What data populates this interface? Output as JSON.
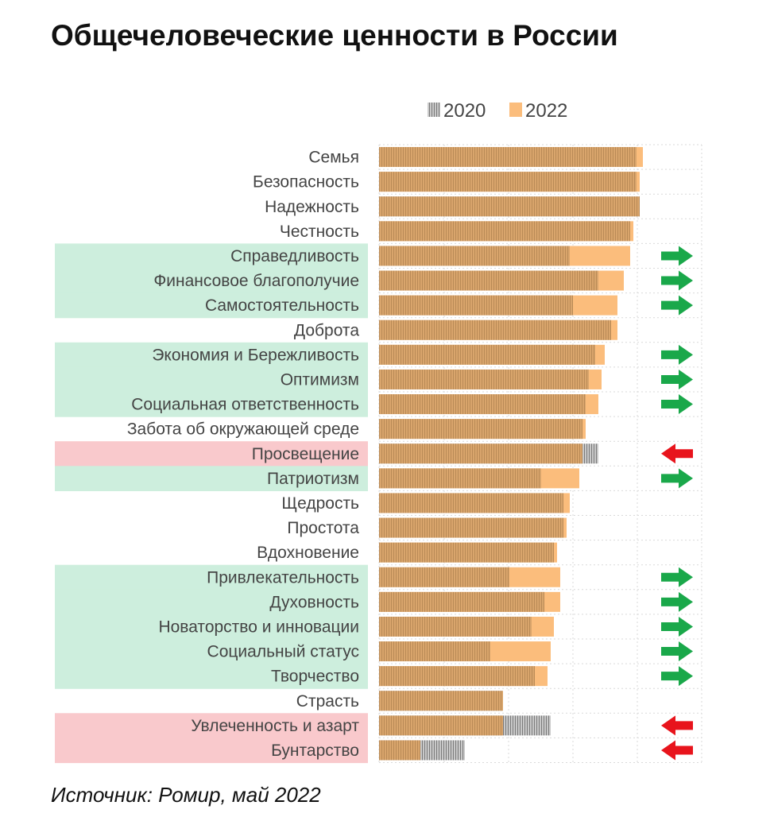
{
  "title": "Общечеловеческие ценности в России",
  "source": "Источник: Ромир, май 2022",
  "colors": {
    "bar2020": "#c8a070",
    "bar2020_stripe": "#e3a55c",
    "bar2022": "#fbbd7c",
    "bar2020_gray": "#9a9a9a",
    "highlight_green": "#cdeedd",
    "highlight_red": "#f9c9cc",
    "arrow_up": "#1aa84a",
    "arrow_down": "#e8141c",
    "grid": "#d9d9d9",
    "label": "#444444"
  },
  "chart_data": {
    "type": "bar",
    "orientation": "horizontal",
    "title": "Общечеловеческие ценности в России",
    "legend": {
      "position": "top",
      "entries": [
        "2020",
        "2022"
      ]
    },
    "grid": true,
    "xlim": [
      0,
      100
    ],
    "categories": [
      "Семья",
      "Безопасность",
      "Надежность",
      "Честность",
      "Справедливость",
      "Финансовое благополучие",
      "Самостоятельность",
      "Доброта",
      "Экономия и Бережливость",
      "Оптимизм",
      "Социальная ответственность",
      "Забота об окружающей среде",
      "Просвещение",
      "Патриотизм",
      "Щедрость",
      "Простота",
      "Вдохновение",
      "Привлекательность",
      "Духовность",
      "Новаторство и инновации",
      "Социальный статус",
      "Творчество",
      "Страсть",
      "Увлеченность и азарт",
      "Бунтарство"
    ],
    "series": [
      {
        "name": "2020",
        "values": [
          81,
          81,
          82,
          79,
          60,
          69,
          61,
          73,
          68,
          66,
          65,
          64,
          69,
          51,
          58,
          58,
          55,
          41,
          52,
          48,
          35,
          49,
          39,
          54,
          27
        ]
      },
      {
        "name": "2022",
        "values": [
          83,
          82,
          82,
          80,
          79,
          77,
          75,
          75,
          71,
          70,
          69,
          65,
          64,
          63,
          60,
          59,
          56,
          57,
          57,
          55,
          54,
          53,
          39,
          39,
          13
        ]
      }
    ],
    "highlight": [
      "none",
      "none",
      "none",
      "none",
      "up",
      "up",
      "up",
      "none",
      "up",
      "up",
      "up",
      "none",
      "down",
      "up",
      "none",
      "none",
      "none",
      "up",
      "up",
      "up",
      "up",
      "up",
      "none",
      "down",
      "down"
    ]
  }
}
